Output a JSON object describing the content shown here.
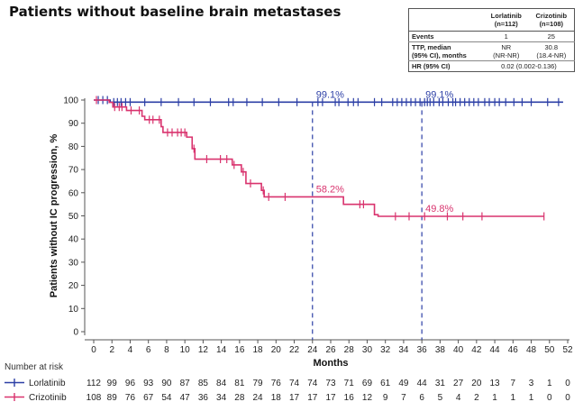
{
  "title": "Patients without baseline brain metastases",
  "stats_table": {
    "col1": "Lorlatinib\n(n=112)",
    "col2": "Crizotinib\n(n=108)",
    "rows": [
      {
        "label": "Events",
        "v1": "1",
        "v2": "25"
      },
      {
        "label": "TTP, median\n(95% CI), months",
        "v1": "NR\n(NR-NR)",
        "v2": "30.8\n(18.4-NR)"
      },
      {
        "label": "HR (95% CI)",
        "value": "0.02 (0.002-0.136)"
      }
    ]
  },
  "risk_title": "Number at risk",
  "colors": {
    "lorlatinib": "#2c3fa6",
    "crizotinib": "#d9336e"
  },
  "chart_data": {
    "type": "line",
    "xlabel": "Months",
    "ylabel": "Patients without IC progression, %",
    "xlim": [
      0,
      52
    ],
    "ylim": [
      0,
      100
    ],
    "xticks": [
      0,
      2,
      4,
      6,
      8,
      10,
      12,
      14,
      16,
      18,
      20,
      22,
      24,
      26,
      28,
      30,
      32,
      34,
      36,
      38,
      40,
      42,
      44,
      46,
      48,
      50,
      52
    ],
    "yticks": [
      0,
      10,
      20,
      30,
      40,
      50,
      60,
      70,
      80,
      90,
      100
    ],
    "series": [
      {
        "name": "Lorlatinib",
        "color": "#2c3fa6",
        "steps": [
          [
            0,
            100
          ],
          [
            1.8,
            100
          ],
          [
            1.8,
            99.1
          ],
          [
            51.5,
            99.1
          ]
        ],
        "censors": [
          0.5,
          1.0,
          1.5,
          2.2,
          2.6,
          3.0,
          3.5,
          4.0,
          5.6,
          7.4,
          9.3,
          11.0,
          12.8,
          14.8,
          15.3,
          16.8,
          18.5,
          20.3,
          22.3,
          24.6,
          25.1,
          26.5,
          26.9,
          27.9,
          28.5,
          29.0,
          30.8,
          31.6,
          32.8,
          33.3,
          33.8,
          34.3,
          34.8,
          35.3,
          35.8,
          36.3,
          36.6,
          36.9,
          37.3,
          37.9,
          38.3,
          38.9,
          39.4,
          39.7,
          40.2,
          40.7,
          41.2,
          41.7,
          42.2,
          42.9,
          43.4,
          44.0,
          44.5,
          45.2,
          46.1,
          47.0,
          48.0,
          49.8,
          51.0
        ]
      },
      {
        "name": "Crizotinib",
        "color": "#d9336e",
        "steps": [
          [
            0,
            100
          ],
          [
            1.7,
            100
          ],
          [
            1.7,
            99
          ],
          [
            2.1,
            99
          ],
          [
            2.1,
            97
          ],
          [
            3.6,
            97
          ],
          [
            3.6,
            95.5
          ],
          [
            5.3,
            95.5
          ],
          [
            5.3,
            93
          ],
          [
            5.6,
            93
          ],
          [
            5.6,
            91.5
          ],
          [
            7.4,
            91.5
          ],
          [
            7.4,
            88.5
          ],
          [
            7.6,
            88.5
          ],
          [
            7.6,
            86
          ],
          [
            10.2,
            86
          ],
          [
            10.2,
            84
          ],
          [
            10.8,
            84
          ],
          [
            10.8,
            79
          ],
          [
            11.1,
            79
          ],
          [
            11.1,
            74.5
          ],
          [
            15.2,
            74.5
          ],
          [
            15.2,
            72
          ],
          [
            16.2,
            72
          ],
          [
            16.2,
            69
          ],
          [
            16.7,
            69
          ],
          [
            16.7,
            64
          ],
          [
            18.4,
            64
          ],
          [
            18.4,
            61
          ],
          [
            18.7,
            61
          ],
          [
            18.7,
            58.2
          ],
          [
            27.4,
            58.2
          ],
          [
            27.4,
            55
          ],
          [
            30.8,
            55
          ],
          [
            30.8,
            50.5
          ],
          [
            31.2,
            50.5
          ],
          [
            31.2,
            49.8
          ],
          [
            49.4,
            49.8
          ]
        ],
        "censors": [
          0.3,
          2.3,
          2.8,
          3.1,
          4.1,
          5.0,
          6.1,
          6.5,
          7.2,
          8.1,
          8.6,
          9.2,
          9.6,
          10.0,
          11.0,
          12.4,
          13.9,
          14.6,
          15.4,
          16.4,
          17.2,
          18.6,
          19.2,
          21.0,
          29.2,
          29.6,
          33.1,
          34.6,
          36.3,
          38.8,
          40.5,
          42.6,
          49.4
        ]
      }
    ],
    "reference_lines": [
      24,
      36
    ],
    "annotations": [
      {
        "x": 24,
        "y": 99.1,
        "text": "99.1%",
        "series": "Lorlatinib"
      },
      {
        "x": 36,
        "y": 99.1,
        "text": "99.1%",
        "series": "Lorlatinib"
      },
      {
        "x": 24,
        "y": 58.2,
        "text": "58.2%",
        "series": "Crizotinib"
      },
      {
        "x": 36,
        "y": 49.8,
        "text": "49.8%",
        "series": "Crizotinib"
      }
    ],
    "risk_table": {
      "times": [
        0,
        2,
        4,
        6,
        8,
        10,
        12,
        14,
        16,
        18,
        20,
        22,
        24,
        26,
        28,
        30,
        32,
        34,
        36,
        38,
        40,
        42,
        44,
        46,
        48,
        50,
        52
      ],
      "rows": [
        {
          "name": "Lorlatinib",
          "values": [
            112,
            99,
            96,
            93,
            90,
            87,
            85,
            84,
            81,
            79,
            76,
            74,
            74,
            73,
            71,
            69,
            61,
            49,
            44,
            31,
            27,
            20,
            13,
            7,
            3,
            1,
            0
          ]
        },
        {
          "name": "Crizotinib",
          "values": [
            108,
            89,
            76,
            67,
            54,
            47,
            36,
            34,
            28,
            24,
            18,
            17,
            17,
            17,
            16,
            12,
            9,
            7,
            6,
            5,
            4,
            2,
            1,
            1,
            1,
            0,
            0
          ]
        }
      ]
    }
  }
}
